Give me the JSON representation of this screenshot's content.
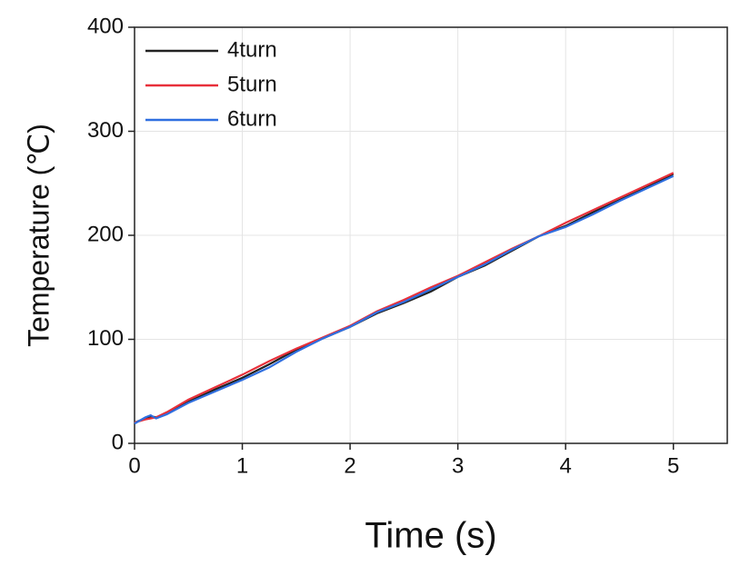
{
  "chart_data": {
    "type": "line",
    "xlabel": "Time (s)",
    "ylabel": "Temperature (℃)",
    "x": [
      0,
      0.1,
      0.15,
      0.2,
      0.3,
      0.5,
      0.75,
      1,
      1.25,
      1.5,
      1.75,
      2,
      2.25,
      2.5,
      2.75,
      3,
      3.25,
      3.5,
      3.75,
      4,
      4.25,
      4.5,
      4.75,
      5
    ],
    "series": [
      {
        "name": "4turn",
        "color": "#222222",
        "values": [
          20,
          24,
          26,
          25,
          29,
          40,
          52,
          63,
          76,
          90,
          101,
          112,
          125,
          135,
          146,
          160,
          171,
          185,
          199,
          209,
          222,
          234,
          246,
          259
        ]
      },
      {
        "name": "5turn",
        "color": "#e8303a",
        "values": [
          20,
          23,
          24,
          25,
          30,
          42,
          54,
          66,
          79,
          91,
          102,
          113,
          127,
          138,
          150,
          161,
          174,
          187,
          199,
          212,
          224,
          236,
          248,
          260
        ]
      },
      {
        "name": "6turn",
        "color": "#2f6fe0",
        "values": [
          19,
          25,
          27,
          24,
          28,
          39,
          50,
          61,
          73,
          88,
          101,
          112,
          126,
          136,
          148,
          160,
          172,
          186,
          199,
          208,
          220,
          233,
          245,
          257
        ]
      }
    ],
    "xlim": [
      0,
      5.5
    ],
    "xticks": [
      0,
      1,
      2,
      3,
      4,
      5
    ],
    "ylim": [
      0,
      400
    ],
    "yticks": [
      0,
      100,
      200,
      300,
      400
    ],
    "grid": true,
    "legend": "upper left"
  }
}
